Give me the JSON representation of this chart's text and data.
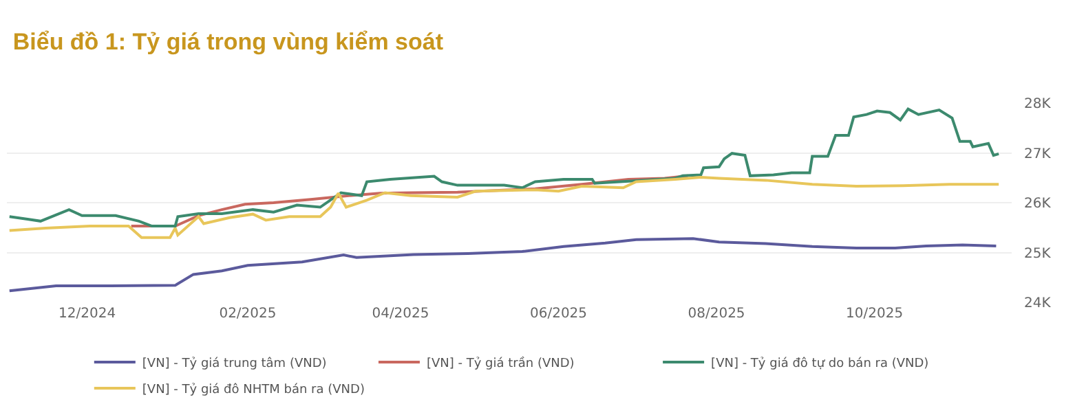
{
  "chart_data": {
    "type": "line",
    "title": "Biểu đồ 1: Tỷ giá trong vùng kiểm soát",
    "xlim": [
      "2024-10-31",
      "2025-11-23"
    ],
    "xticks": [
      {
        "value": "2024-12-01",
        "label": "12/2024"
      },
      {
        "value": "2025-02-01",
        "label": "02/2025"
      },
      {
        "value": "2025-04-01",
        "label": "04/2025"
      },
      {
        "value": "2025-06-01",
        "label": "06/2025"
      },
      {
        "value": "2025-08-01",
        "label": "08/2025"
      },
      {
        "value": "2025-10-01",
        "label": "10/2025"
      }
    ],
    "ylim": [
      24000,
      28000
    ],
    "yticks": [
      {
        "value": 24000,
        "label": "24K"
      },
      {
        "value": 25000,
        "label": "25K"
      },
      {
        "value": 26000,
        "label": "26K"
      },
      {
        "value": 27000,
        "label": "27K"
      },
      {
        "value": 28000,
        "label": "28K"
      }
    ],
    "grid": "y",
    "legend": "bottom",
    "marker": "none",
    "line_style": "solid",
    "series": [
      {
        "name": "[VN] - Tỷ giá trung tâm (VND)",
        "color": "#5b5a9c",
        "x": [
          "2024-11-01",
          "2024-11-19",
          "2024-12-10",
          "2025-01-04",
          "2025-01-11",
          "2025-01-22",
          "2025-02-01",
          "2025-02-22",
          "2025-03-10",
          "2025-03-15",
          "2025-04-06",
          "2025-04-27",
          "2025-05-18",
          "2025-06-03",
          "2025-06-19",
          "2025-07-01",
          "2025-07-23",
          "2025-08-02",
          "2025-08-20",
          "2025-09-07",
          "2025-09-24",
          "2025-10-09",
          "2025-10-21",
          "2025-11-04",
          "2025-11-17"
        ],
        "values": [
          24230,
          24330,
          24330,
          24340,
          24560,
          24630,
          24740,
          24810,
          24950,
          24900,
          24960,
          24980,
          25020,
          25120,
          25190,
          25260,
          25280,
          25210,
          25180,
          25120,
          25090,
          25090,
          25130,
          25150,
          25130
        ]
      },
      {
        "name": "[VN] - Tỷ giá trần (VND)",
        "color": "#c9685f",
        "x": [
          "2024-12-18",
          "2025-01-04",
          "2025-01-13",
          "2025-01-22",
          "2025-01-31",
          "2025-02-11",
          "2025-02-26",
          "2025-03-12",
          "2025-03-24",
          "2025-04-05",
          "2025-04-23",
          "2025-05-23",
          "2025-06-10",
          "2025-06-28",
          "2025-07-12",
          "2025-07-21"
        ],
        "values": [
          25530,
          25530,
          25740,
          25860,
          25970,
          26000,
          26070,
          26140,
          26190,
          26200,
          26210,
          26280,
          26370,
          26470,
          26490,
          26540
        ]
      },
      {
        "name": "[VN] - Tỷ giá đô tự do bán ra (VND)",
        "color": "#3c8a6e",
        "x": [
          "2024-11-01",
          "2024-11-08",
          "2024-11-13",
          "2024-11-24",
          "2024-11-29",
          "2024-12-12",
          "2024-12-21",
          "2024-12-26",
          "2025-01-04",
          "2025-01-05",
          "2025-01-13",
          "2025-01-22",
          "2025-02-03",
          "2025-02-11",
          "2025-02-20",
          "2025-03-01",
          "2025-03-09",
          "2025-03-17",
          "2025-03-19",
          "2025-03-28",
          "2025-04-14",
          "2025-04-17",
          "2025-04-23",
          "2025-05-11",
          "2025-05-18",
          "2025-05-23",
          "2025-06-03",
          "2025-06-14",
          "2025-06-15",
          "2025-06-28",
          "2025-07-16",
          "2025-07-19",
          "2025-07-26",
          "2025-07-27",
          "2025-08-02",
          "2025-08-04",
          "2025-08-07",
          "2025-08-12",
          "2025-08-14",
          "2025-08-23",
          "2025-08-30",
          "2025-09-06",
          "2025-09-07",
          "2025-09-13",
          "2025-09-16",
          "2025-09-21",
          "2025-09-23",
          "2025-09-28",
          "2025-10-02",
          "2025-10-07",
          "2025-10-11",
          "2025-10-14",
          "2025-10-18",
          "2025-10-26",
          "2025-10-31",
          "2025-11-03",
          "2025-11-07",
          "2025-11-08",
          "2025-11-14",
          "2025-11-16",
          "2025-11-18"
        ],
        "values": [
          25720,
          25670,
          25630,
          25860,
          25740,
          25740,
          25630,
          25530,
          25530,
          25720,
          25780,
          25780,
          25860,
          25810,
          25950,
          25910,
          26200,
          26140,
          26420,
          26470,
          26530,
          26420,
          26350,
          26350,
          26300,
          26420,
          26470,
          26470,
          26390,
          26430,
          26490,
          26540,
          26560,
          26700,
          26720,
          26880,
          26990,
          26950,
          26540,
          26560,
          26600,
          26600,
          26930,
          26930,
          27350,
          27350,
          27720,
          27770,
          27840,
          27810,
          27660,
          27880,
          27770,
          27860,
          27700,
          27230,
          27230,
          27120,
          27190,
          26950,
          26980
        ]
      },
      {
        "name": "[VN] - Tỷ giá đô NHTM bán ra (VND)",
        "color": "#e8c65a",
        "x": [
          "2024-11-01",
          "2024-11-15",
          "2024-12-02",
          "2024-12-17",
          "2024-12-22",
          "2025-01-02",
          "2025-01-04",
          "2025-01-05",
          "2025-01-13",
          "2025-01-15",
          "2025-01-25",
          "2025-02-03",
          "2025-02-08",
          "2025-02-17",
          "2025-03-01",
          "2025-03-05",
          "2025-03-08",
          "2025-03-11",
          "2025-03-19",
          "2025-03-26",
          "2025-04-05",
          "2025-04-23",
          "2025-04-30",
          "2025-05-23",
          "2025-06-01",
          "2025-06-10",
          "2025-06-26",
          "2025-07-01",
          "2025-07-16",
          "2025-07-26",
          "2025-08-02",
          "2025-08-20",
          "2025-09-07",
          "2025-09-24",
          "2025-10-12",
          "2025-10-30",
          "2025-11-18"
        ],
        "values": [
          25440,
          25490,
          25530,
          25530,
          25300,
          25300,
          25490,
          25350,
          25720,
          25580,
          25700,
          25770,
          25650,
          25720,
          25720,
          25910,
          26190,
          25910,
          26050,
          26200,
          26140,
          26110,
          26230,
          26260,
          26230,
          26330,
          26300,
          26420,
          26470,
          26510,
          26490,
          26450,
          26370,
          26330,
          26340,
          26370,
          26370
        ]
      }
    ]
  }
}
